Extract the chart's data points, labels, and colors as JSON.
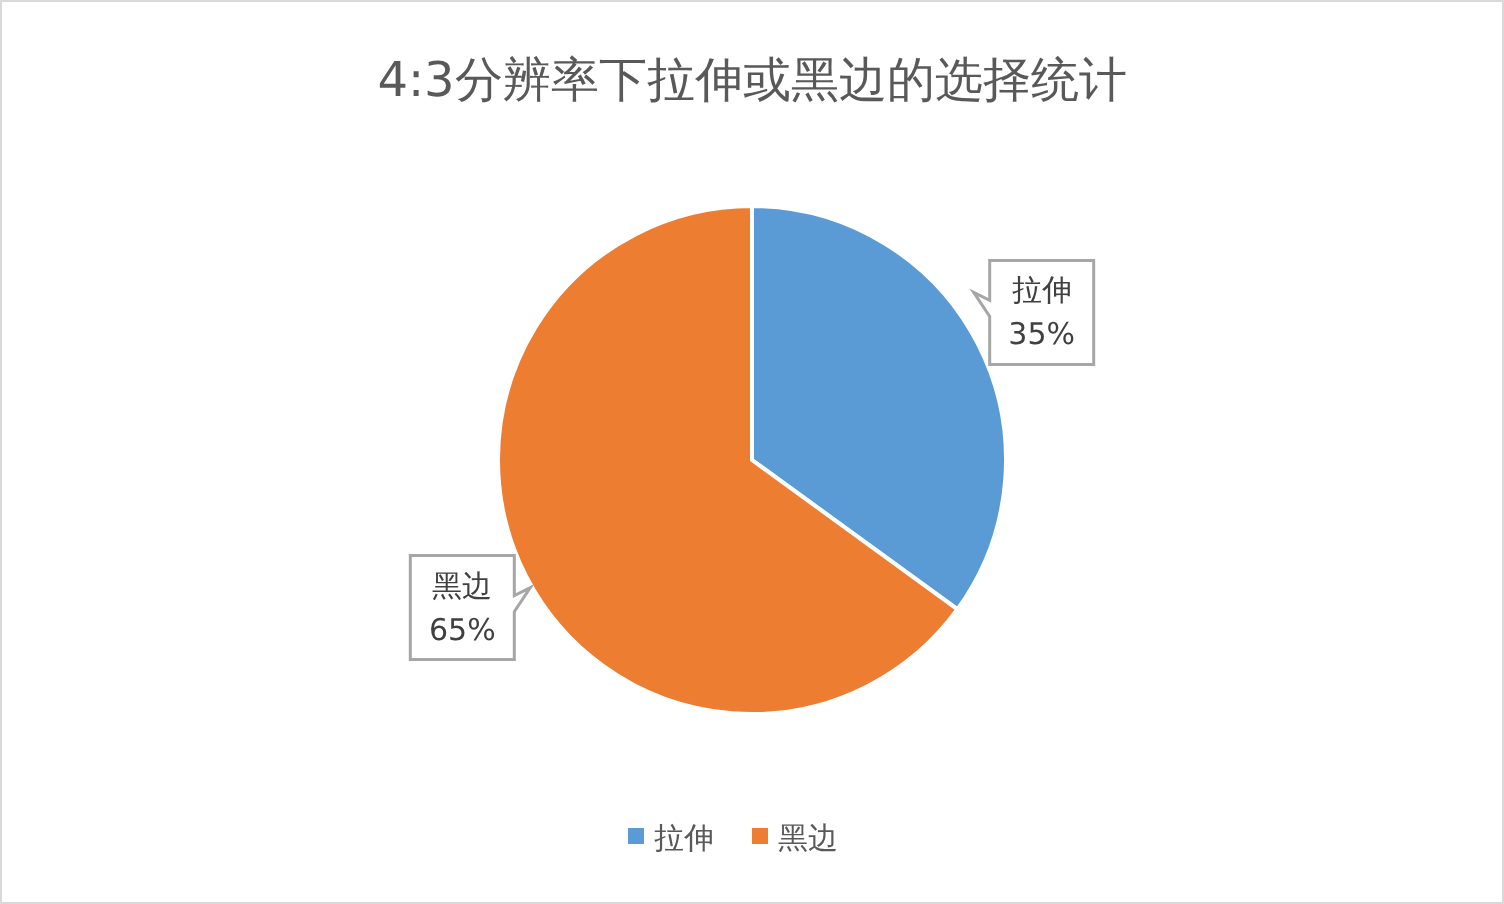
{
  "chart_data": {
    "type": "pie",
    "title": "4:3分辨率下拉伸或黑边的选择统计",
    "categories": [
      "拉伸",
      "黑边"
    ],
    "values": [
      35,
      65
    ],
    "colors": [
      "#5b9bd5",
      "#ed7d31"
    ],
    "value_labels": [
      "35%",
      "65%"
    ],
    "legend": "bottom"
  }
}
